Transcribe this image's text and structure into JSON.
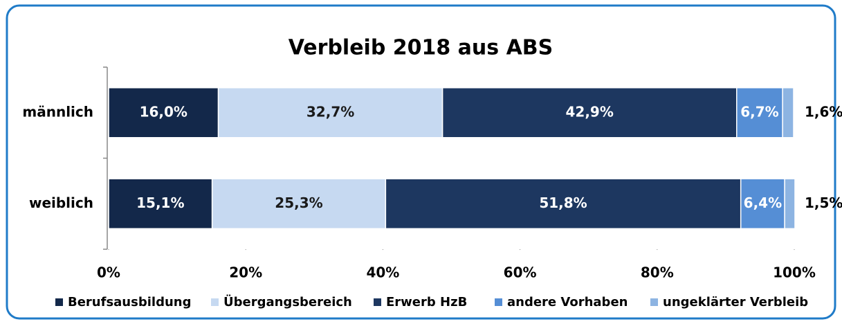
{
  "chart_data": {
    "type": "bar",
    "orientation": "horizontal",
    "stacked": true,
    "title": "Verbleib 2018 aus ABS",
    "categories": [
      "männlich",
      "weiblich"
    ],
    "series": [
      {
        "name": "Berufsausbildung",
        "color": "#13284a",
        "values": [
          16.0,
          15.1
        ],
        "value_labels": [
          "16,0%",
          "15,1%"
        ]
      },
      {
        "name": "Übergangsbereich",
        "color": "#c6d9f1",
        "values": [
          32.7,
          25.3
        ],
        "value_labels": [
          "32,7%",
          "25,3%"
        ]
      },
      {
        "name": "Erwerb HzB",
        "color": "#1d3760",
        "values": [
          42.9,
          51.8
        ],
        "value_labels": [
          "42,9%",
          "51,8%"
        ]
      },
      {
        "name": "andere Vorhaben",
        "color": "#558ed5",
        "values": [
          6.7,
          6.4
        ],
        "value_labels": [
          "6,7%",
          "6,4%"
        ]
      },
      {
        "name": "ungeklärter Verbleib",
        "color": "#8db4e2",
        "values": [
          1.6,
          1.5
        ],
        "value_labels": [
          "1,6%",
          "1,5%"
        ]
      }
    ],
    "xlim": [
      0,
      100
    ],
    "xticks": [
      {
        "value": 0,
        "label": "0%"
      },
      {
        "value": 20,
        "label": "20%"
      },
      {
        "value": 40,
        "label": "40%"
      },
      {
        "value": 60,
        "label": "60%"
      },
      {
        "value": 80,
        "label": "80%"
      },
      {
        "value": 100,
        "label": "100%"
      }
    ],
    "legend": "bottom"
  }
}
